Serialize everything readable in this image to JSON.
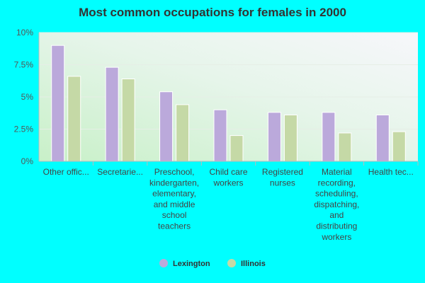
{
  "chart_data": {
    "type": "bar",
    "title": "Most common occupations for females in 2000",
    "xlabel": "",
    "ylabel": "",
    "ylim": [
      0,
      10
    ],
    "y_ticks": [
      0,
      2.5,
      5,
      7.5,
      10
    ],
    "y_tick_labels": [
      "0%",
      "2.5%",
      "5%",
      "7.5%",
      "10%"
    ],
    "grid": true,
    "legend_position": "bottom",
    "categories": [
      [
        "Other offic..."
      ],
      [
        "Secretarie..."
      ],
      [
        "Preschool,",
        "kindergarten,",
        "elementary,",
        "and middle",
        "school",
        "teachers"
      ],
      [
        "Child care",
        "workers"
      ],
      [
        "Registered",
        "nurses"
      ],
      [
        "Material",
        "recording,",
        "scheduling,",
        "dispatching,",
        "and",
        "distributing",
        "workers"
      ],
      [
        "Health tec..."
      ]
    ],
    "series": [
      {
        "name": "Lexington",
        "color": "#BBA9DB",
        "values": [
          9.0,
          7.3,
          5.4,
          4.0,
          3.8,
          3.8,
          3.6
        ]
      },
      {
        "name": "Illinois",
        "color": "#C5D9A6",
        "values": [
          6.6,
          6.4,
          4.4,
          2.0,
          3.6,
          2.2,
          2.3
        ]
      }
    ]
  }
}
